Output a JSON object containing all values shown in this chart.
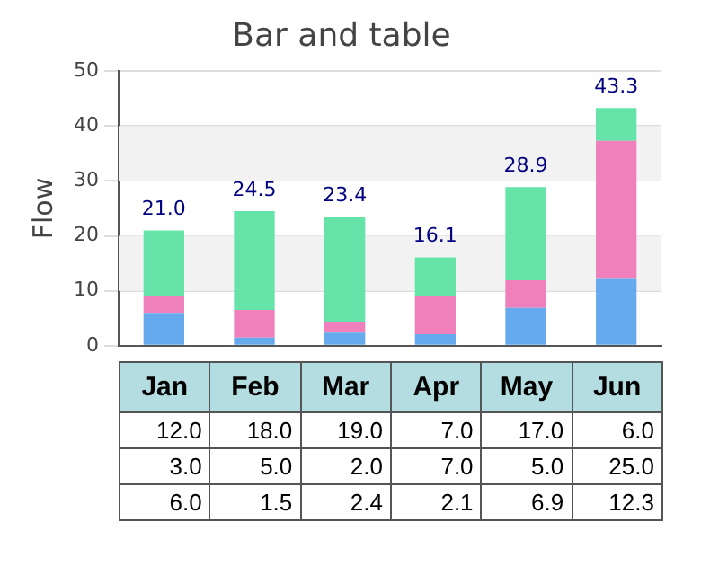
{
  "chart_data": {
    "type": "bar",
    "title": "Bar and table",
    "ylabel": "Flow",
    "categories": [
      "Jan",
      "Feb",
      "Mar",
      "Apr",
      "May",
      "Jun"
    ],
    "stacked": true,
    "series": [
      {
        "color": "#66aaee",
        "values": [
          6.0,
          1.5,
          2.4,
          2.1,
          6.9,
          12.3
        ],
        "value_labels": [
          "6.0",
          "1.5",
          "2.4",
          "2.1",
          "6.9",
          "12.3"
        ]
      },
      {
        "color": "#f080bc",
        "values": [
          3.0,
          5.0,
          2.0,
          7.0,
          5.0,
          25.0
        ],
        "value_labels": [
          "3.0",
          "5.0",
          "2.0",
          "7.0",
          "5.0",
          "25.0"
        ]
      },
      {
        "color": "#66e3a8",
        "values": [
          12.0,
          18.0,
          19.0,
          7.0,
          17.0,
          6.0
        ],
        "value_labels": [
          "12.0",
          "18.0",
          "19.0",
          "7.0",
          "17.0",
          "6.0"
        ]
      }
    ],
    "totals": [
      "21.0",
      "24.5",
      "23.4",
      "16.1",
      "28.9",
      "43.3"
    ],
    "ylim": [
      0,
      50
    ],
    "yticks": [
      0,
      10,
      20,
      30,
      40,
      50
    ],
    "grid": "y",
    "legend": false
  }
}
